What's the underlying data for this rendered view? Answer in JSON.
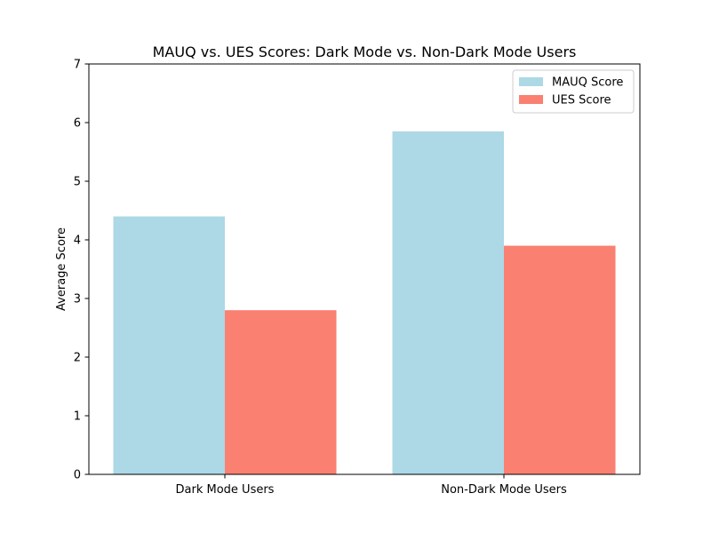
{
  "chart_data": {
    "type": "bar",
    "title": "MAUQ vs. UES Scores: Dark Mode vs. Non-Dark Mode Users",
    "xlabel": "",
    "ylabel": "Average Score",
    "categories": [
      "Dark Mode Users",
      "Non-Dark Mode Users"
    ],
    "series": [
      {
        "name": "MAUQ Score",
        "values": [
          4.4,
          5.85
        ],
        "color": "#add8e6"
      },
      {
        "name": "UES Score",
        "values": [
          2.8,
          3.9
        ],
        "color": "#fa8072"
      }
    ],
    "ylim": [
      0,
      7
    ],
    "yticks": [
      "0",
      "1",
      "2",
      "3",
      "4",
      "5",
      "6",
      "7"
    ],
    "grid": false,
    "legend_position": "top-right"
  }
}
